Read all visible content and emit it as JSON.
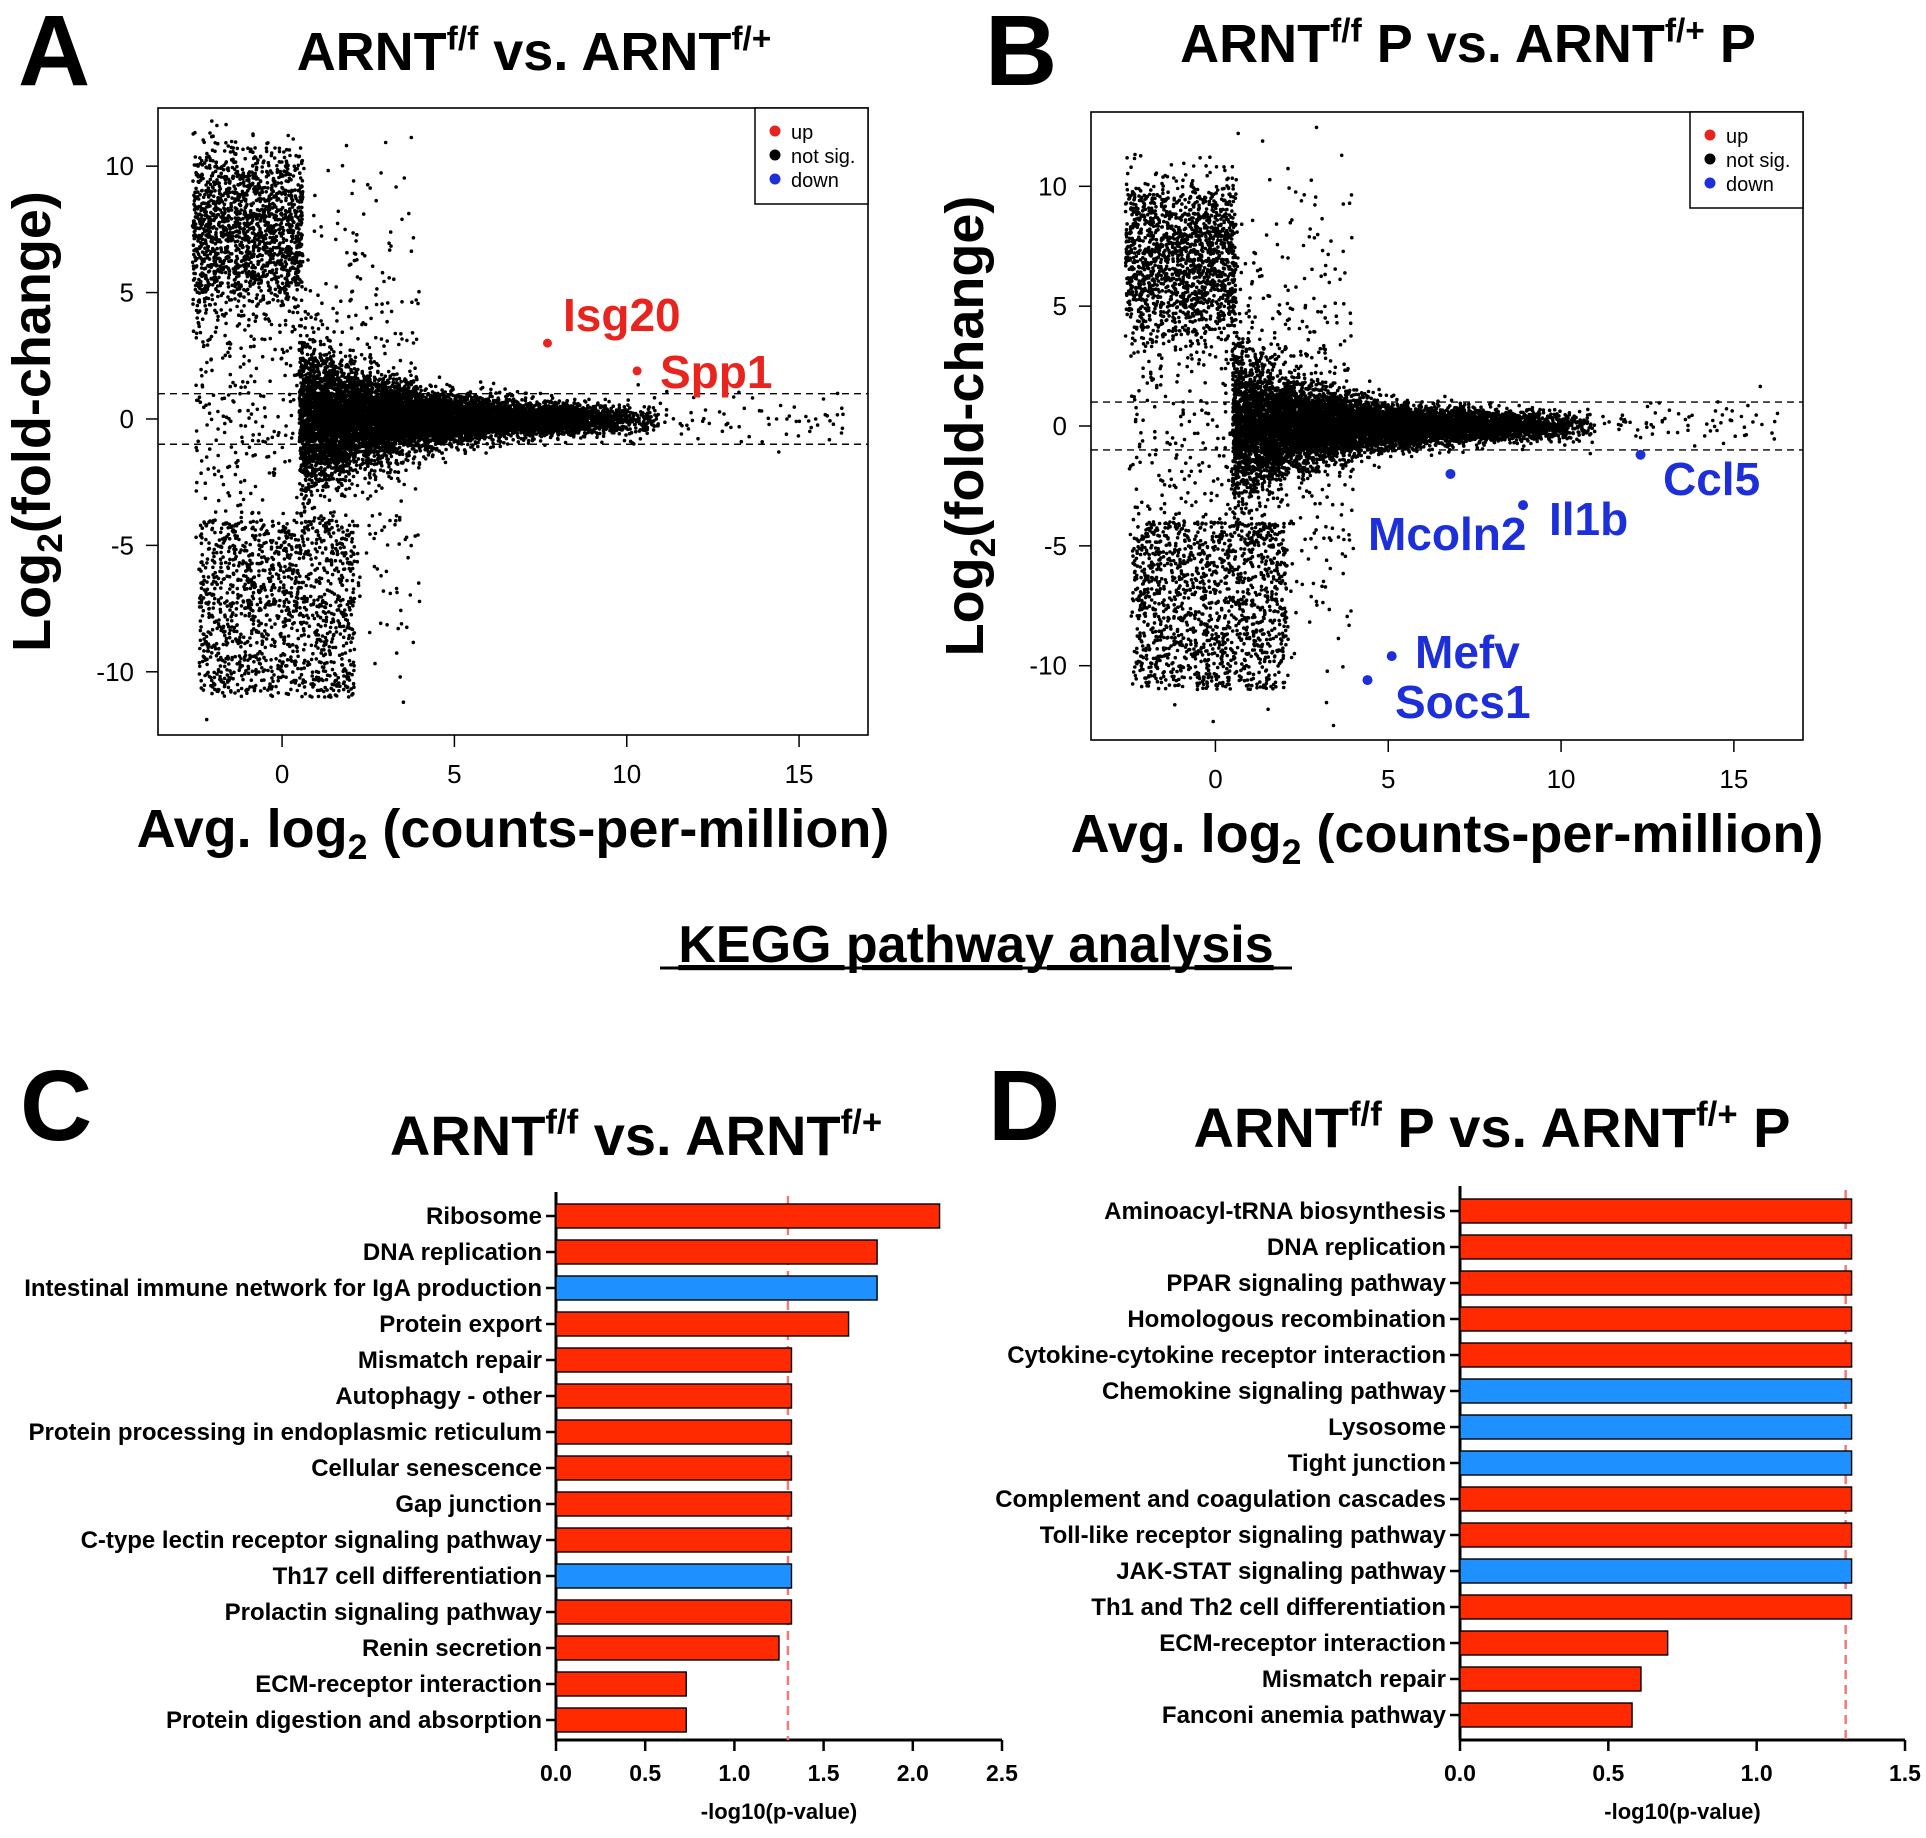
{
  "section_title": "KEGG pathway analysis",
  "colors": {
    "up": "#ff2a00",
    "down": "#1e90ff",
    "ma_up": "#e8241f",
    "ma_down": "#1d2fd8",
    "point": "#000000",
    "threshold": "#ee7b7b"
  },
  "chart_data": [
    {
      "panel": "A",
      "type": "scatter",
      "title": {
        "prefix": "ARNT",
        "sup1": "f/f",
        "middle": " vs. ARNT",
        "sup2": "f/+",
        "suffix": ""
      },
      "xlabel": {
        "prefix": "Avg. log",
        "sub": "2",
        "suffix": " (counts-per-million)"
      },
      "ylabel": {
        "prefix": "Log",
        "sub": "2",
        "suffix": "(fold-change)"
      },
      "xlim": [
        -3.6,
        17
      ],
      "ylim": [
        -12.5,
        12.3
      ],
      "xticks": [
        0,
        5,
        10,
        15
      ],
      "yticks": [
        -10,
        -5,
        0,
        5,
        10
      ],
      "threshold_lines": [
        1,
        -1
      ],
      "legend": {
        "position": "top-right",
        "entries": [
          "up",
          "not sig.",
          "down"
        ]
      },
      "point_cloud": "approximately 15000 genes, not significant",
      "highlighted": [
        {
          "gene": "Isg20",
          "x": 7.7,
          "y": 3.0,
          "status": "up"
        },
        {
          "gene": "Spp1",
          "x": 10.3,
          "y": 1.9,
          "status": "up"
        }
      ]
    },
    {
      "panel": "B",
      "type": "scatter",
      "title": {
        "prefix": "ARNT",
        "sup1": "f/f",
        "middle": " P vs. ARNT",
        "sup2": "f/+",
        "suffix": " P"
      },
      "xlabel": {
        "prefix": "Avg. log",
        "sub": "2",
        "suffix": " (counts-per-million)"
      },
      "ylabel": {
        "prefix": "Log",
        "sub": "2",
        "suffix": "(fold-change)"
      },
      "xlim": [
        -3.6,
        17
      ],
      "ylim": [
        -13.1,
        13.1
      ],
      "xticks": [
        0,
        5,
        10,
        15
      ],
      "yticks": [
        -10,
        -5,
        0,
        5,
        10
      ],
      "threshold_lines": [
        1,
        -1
      ],
      "legend": {
        "position": "top-right",
        "entries": [
          "up",
          "not sig.",
          "down"
        ]
      },
      "point_cloud": "approximately 15000 genes, not significant",
      "highlighted": [
        {
          "gene": "Ccl5",
          "x": 12.3,
          "y": -1.2,
          "status": "down"
        },
        {
          "gene": "Il1b",
          "x": 8.9,
          "y": -3.3,
          "status": "down"
        },
        {
          "gene": "Mcoln2",
          "x": 6.8,
          "y": -2.0,
          "status": "down"
        },
        {
          "gene": "Mefv",
          "x": 5.1,
          "y": -9.6,
          "status": "down"
        },
        {
          "gene": "Socs1",
          "x": 4.4,
          "y": -10.6,
          "status": "down"
        }
      ]
    },
    {
      "panel": "C",
      "type": "bar",
      "orientation": "horizontal",
      "title": {
        "prefix": "ARNT",
        "sup1": "f/f",
        "middle": " vs. ARNT",
        "sup2": "f/+",
        "suffix": ""
      },
      "xlabel": "-log10(p-value)",
      "xlim": [
        0,
        2.5
      ],
      "xticks": [
        "0.0",
        "0.5",
        "1.0",
        "1.5",
        "2.0",
        "2.5"
      ],
      "threshold": 1.3,
      "categories": [
        "Ribosome",
        "DNA replication",
        "Intestinal immune network for IgA production",
        "Protein export",
        "Mismatch repair",
        "Autophagy - other",
        "Protein processing in endoplasmic reticulum",
        "Cellular senescence",
        "Gap junction",
        "C-type lectin receptor signaling pathway",
        "Th17 cell differentiation",
        "Prolactin signaling pathway",
        "Renin secretion",
        "ECM-receptor interaction",
        "Protein digestion and absorption"
      ],
      "values": [
        2.15,
        1.8,
        1.8,
        1.64,
        1.32,
        1.32,
        1.32,
        1.32,
        1.32,
        1.32,
        1.32,
        1.32,
        1.25,
        0.73,
        0.73
      ],
      "direction": [
        "up",
        "up",
        "down",
        "up",
        "up",
        "up",
        "up",
        "up",
        "up",
        "up",
        "down",
        "up",
        "up",
        "up",
        "up"
      ]
    },
    {
      "panel": "D",
      "type": "bar",
      "orientation": "horizontal",
      "title": {
        "prefix": "ARNT",
        "sup1": "f/f",
        "middle": " P vs. ARNT",
        "sup2": "f/+",
        "suffix": " P"
      },
      "xlabel": "-log10(p-value)",
      "xlim": [
        0,
        1.5
      ],
      "xticks": [
        "0.0",
        "0.5",
        "1.0",
        "1.5"
      ],
      "threshold": 1.3,
      "categories": [
        "Aminoacyl-tRNA biosynthesis",
        "DNA replication",
        "PPAR signaling pathway",
        "Homologous recombination",
        "Cytokine-cytokine receptor interaction",
        "Chemokine signaling pathway",
        "Lysosome",
        "Tight junction",
        "Complement and coagulation cascades",
        "Toll-like receptor signaling pathway",
        "JAK-STAT signaling pathway",
        "Th1 and Th2 cell differentiation",
        "ECM-receptor interaction",
        "Mismatch repair",
        "Fanconi anemia pathway"
      ],
      "values": [
        1.32,
        1.32,
        1.32,
        1.32,
        1.32,
        1.32,
        1.32,
        1.32,
        1.32,
        1.32,
        1.32,
        1.32,
        0.7,
        0.61,
        0.58
      ],
      "direction": [
        "up",
        "up",
        "up",
        "up",
        "up",
        "down",
        "down",
        "down",
        "up",
        "up",
        "down",
        "up",
        "up",
        "up",
        "up"
      ]
    }
  ]
}
